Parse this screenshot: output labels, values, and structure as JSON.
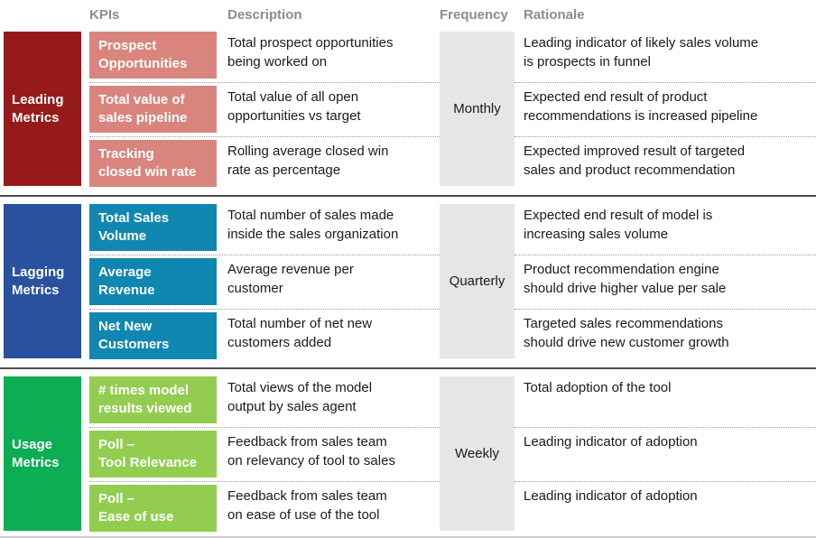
{
  "headers": {
    "kpis": "KPIs",
    "description": "Description",
    "frequency": "Frequency",
    "rationale": "Rationale"
  },
  "colors": {
    "header_text": "#8c8c8c",
    "body_text": "#1a1a1a",
    "frequency_bg": "#e6e6e6",
    "section_divider": "#4d4d4d",
    "row_divider_dotted": "#9b9b9b",
    "bottom_border": "#c9c9c9"
  },
  "sections": [
    {
      "group_label": "Leading\nMetrics",
      "frequency": "Monthly",
      "colors": {
        "group_bg": "#961a1a",
        "kpi_bg": "#d9857d"
      },
      "rows": [
        {
          "kpi": "Prospect\nOpportunities",
          "description": "Total prospect opportunities\nbeing worked on",
          "rationale": "Leading indicator of likely sales volume\nis prospects in funnel"
        },
        {
          "kpi": "Total value of\nsales pipeline",
          "description": "Total value of all open\nopportunities vs target",
          "rationale": "Expected end result of product\nrecommendations is increased pipeline"
        },
        {
          "kpi": "Tracking\nclosed win rate",
          "description": "Rolling average closed win\nrate as percentage",
          "rationale": "Expected improved result of targeted\nsales and product recommendation"
        }
      ]
    },
    {
      "group_label": "Lagging\nMetrics",
      "frequency": "Quarterly",
      "colors": {
        "group_bg": "#2a519e",
        "kpi_bg": "#1087b1"
      },
      "rows": [
        {
          "kpi": "Total Sales\nVolume",
          "description": "Total number of sales made\ninside the sales organization",
          "rationale": "Expected end result of model is\nincreasing sales volume"
        },
        {
          "kpi": "Average\nRevenue",
          "description": "Average revenue per\ncustomer",
          "rationale": "Product recommendation engine\nshould drive higher value per sale"
        },
        {
          "kpi": "Net New\nCustomers",
          "description": "Total number of net new\ncustomers added",
          "rationale": "Targeted sales recommendations\nshould drive new customer growth"
        }
      ]
    },
    {
      "group_label": "Usage\nMetrics",
      "frequency": "Weekly",
      "colors": {
        "group_bg": "#0bae53",
        "kpi_bg": "#92cd50"
      },
      "rows": [
        {
          "kpi": "# times model\nresults viewed",
          "description": "Total views of the model\noutput by sales agent",
          "rationale": "Total adoption of the tool"
        },
        {
          "kpi": "Poll –\nTool Relevance",
          "description": "Feedback from sales team\non relevancy of tool to sales",
          "rationale": "Leading indicator of adoption"
        },
        {
          "kpi": "Poll –\nEase of use",
          "description": "Feedback from sales team\non ease of use of the tool",
          "rationale": "Leading indicator of adoption"
        }
      ]
    }
  ]
}
